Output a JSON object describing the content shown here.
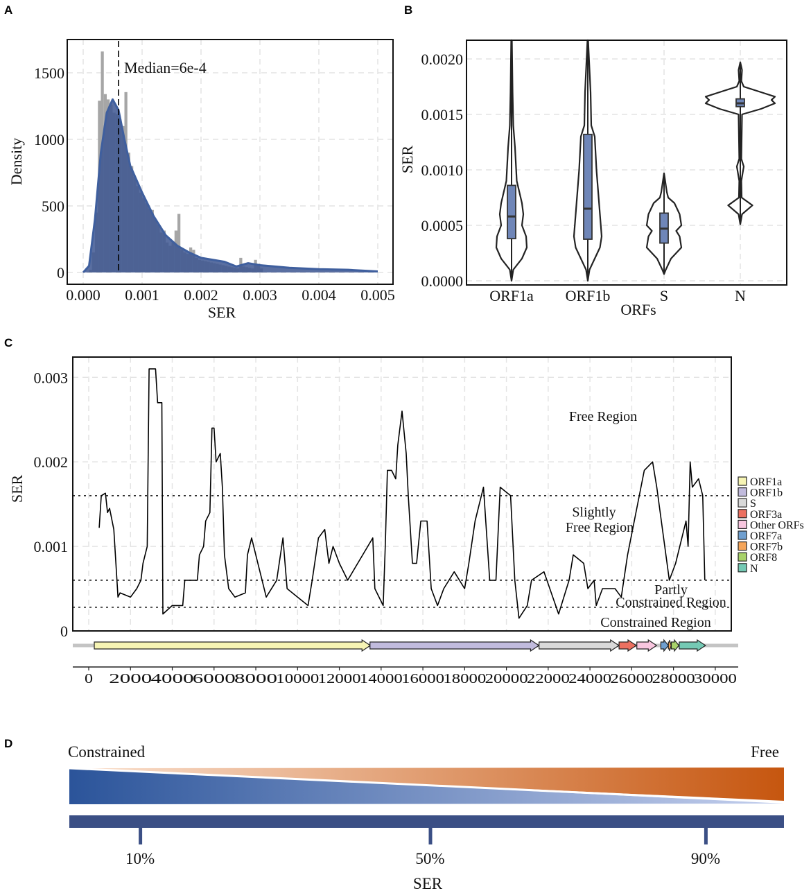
{
  "panels": {
    "a": "A",
    "b": "B",
    "c": "C",
    "d": "D"
  },
  "chart_data": [
    {
      "type": "histogram+density",
      "panel": "A",
      "xlabel": "SER",
      "ylabel": "Density",
      "xlim": [
        0,
        0.0052
      ],
      "ylim": [
        -80,
        1750
      ],
      "xticks": [
        "0.000",
        "0.001",
        "0.002",
        "0.003",
        "0.004",
        "0.005"
      ],
      "xtick_values": [
        0,
        0.001,
        0.002,
        0.003,
        0.004,
        0.005
      ],
      "yticks": [
        "0",
        "500",
        "1000",
        "1500"
      ],
      "ytick_values": [
        0,
        500,
        1000,
        1500
      ],
      "grid": true,
      "annotation": "Median=6e-4",
      "median": 0.0006,
      "bin_width": 5e-05,
      "histogram": [
        [
          0.0001,
          20
        ],
        [
          0.00015,
          150
        ],
        [
          0.0002,
          450
        ],
        [
          0.00025,
          1290
        ],
        [
          0.0003,
          1660
        ],
        [
          0.00035,
          1340
        ],
        [
          0.0004,
          1300
        ],
        [
          0.00045,
          1260
        ],
        [
          0.0005,
          1200
        ],
        [
          0.00055,
          1190
        ],
        [
          0.0006,
          1150
        ],
        [
          0.00065,
          1100
        ],
        [
          0.0007,
          1355
        ],
        [
          0.00075,
          900
        ],
        [
          0.0008,
          800
        ],
        [
          0.00085,
          720
        ],
        [
          0.0009,
          650
        ],
        [
          0.00095,
          600
        ],
        [
          0.001,
          560
        ],
        [
          0.00105,
          520
        ],
        [
          0.0011,
          480
        ],
        [
          0.00115,
          470
        ],
        [
          0.0012,
          400
        ],
        [
          0.00125,
          360
        ],
        [
          0.0013,
          300
        ],
        [
          0.00135,
          315
        ],
        [
          0.0014,
          225
        ],
        [
          0.00145,
          200
        ],
        [
          0.0015,
          225
        ],
        [
          0.00155,
          315
        ],
        [
          0.0016,
          440
        ],
        [
          0.00165,
          170
        ],
        [
          0.0017,
          150
        ],
        [
          0.00175,
          140
        ],
        [
          0.0018,
          188
        ],
        [
          0.00185,
          170
        ],
        [
          0.0019,
          110
        ],
        [
          0.00195,
          95
        ],
        [
          0.002,
          90
        ],
        [
          0.00205,
          85
        ],
        [
          0.0021,
          80
        ],
        [
          0.00215,
          75
        ],
        [
          0.0022,
          70
        ],
        [
          0.00225,
          65
        ],
        [
          0.0023,
          60
        ],
        [
          0.00235,
          55
        ],
        [
          0.0024,
          50
        ],
        [
          0.00245,
          45
        ],
        [
          0.0025,
          40
        ],
        [
          0.00255,
          35
        ],
        [
          0.0026,
          30
        ],
        [
          0.00265,
          110
        ],
        [
          0.0027,
          45
        ],
        [
          0.00275,
          40
        ],
        [
          0.0028,
          35
        ],
        [
          0.00285,
          30
        ],
        [
          0.0029,
          95
        ],
        [
          0.00295,
          65
        ],
        [
          0.003,
          30
        ]
      ],
      "density": [
        [
          0,
          0
        ],
        [
          0.0001,
          50
        ],
        [
          0.0002,
          400
        ],
        [
          0.0003,
          900
        ],
        [
          0.0004,
          1200
        ],
        [
          0.0005,
          1300
        ],
        [
          0.0006,
          1220
        ],
        [
          0.0007,
          1000
        ],
        [
          0.0008,
          800
        ],
        [
          0.001,
          600
        ],
        [
          0.0012,
          420
        ],
        [
          0.0014,
          280
        ],
        [
          0.0016,
          200
        ],
        [
          0.0018,
          150
        ],
        [
          0.002,
          110
        ],
        [
          0.0022,
          95
        ],
        [
          0.0024,
          80
        ],
        [
          0.0026,
          45
        ],
        [
          0.0028,
          70
        ],
        [
          0.003,
          55
        ],
        [
          0.0035,
          35
        ],
        [
          0.004,
          25
        ],
        [
          0.0045,
          20
        ],
        [
          0.005,
          8
        ]
      ],
      "colors": {
        "histogram": "#a6a6a6",
        "density_fill": "#3d5690",
        "density_line": "#3f5f9e",
        "median_line": "#000000"
      }
    },
    {
      "type": "violin",
      "panel": "B",
      "xlabel": "ORFs",
      "ylabel": "SER",
      "categories": [
        "ORF1a",
        "ORF1b",
        "S",
        "N"
      ],
      "ylim": [
        0,
        0.00217
      ],
      "yticks": [
        "0.0000",
        "0.0005",
        "0.0010",
        "0.0015",
        "0.0020"
      ],
      "ytick_values": [
        0,
        0.0005,
        0.001,
        0.0015,
        0.002
      ],
      "grid": true,
      "boxes": [
        {
          "q1": 0.00038,
          "median": 0.00058,
          "q3": 0.00086
        },
        {
          "q1": 0.000375,
          "median": 0.00065,
          "q3": 0.00132
        },
        {
          "q1": 0.00034,
          "median": 0.00047,
          "q3": 0.00061
        },
        {
          "q1": 0.00157,
          "median": 0.0016,
          "q3": 0.00164
        }
      ],
      "violins": [
        [
          [
            0,
            0
          ],
          [
            0.0001,
            0.05
          ],
          [
            0.0002,
            0.3
          ],
          [
            0.0003,
            0.44
          ],
          [
            0.0004,
            0.42
          ],
          [
            0.0005,
            0.3
          ],
          [
            0.0006,
            0.34
          ],
          [
            0.0007,
            0.3
          ],
          [
            0.0009,
            0.15
          ],
          [
            0.0012,
            0.1
          ],
          [
            0.0014,
            0.05
          ],
          [
            0.0017,
            0.03
          ],
          [
            0.00217,
            0.01
          ]
        ],
        [
          [
            0,
            0
          ],
          [
            0.0001,
            0.05
          ],
          [
            0.0002,
            0.2
          ],
          [
            0.0003,
            0.35
          ],
          [
            0.0004,
            0.4
          ],
          [
            0.0006,
            0.35
          ],
          [
            0.0008,
            0.3
          ],
          [
            0.001,
            0.25
          ],
          [
            0.0013,
            0.2
          ],
          [
            0.0014,
            0.1
          ],
          [
            0.0017,
            0.08
          ],
          [
            0.00217,
            0.01
          ]
        ],
        [
          [
            6e-05,
            0
          ],
          [
            0.0001,
            0.05
          ],
          [
            0.0002,
            0.2
          ],
          [
            0.0003,
            0.5
          ],
          [
            0.0004,
            0.45
          ],
          [
            0.00045,
            0.35
          ],
          [
            0.0005,
            0.5
          ],
          [
            0.0006,
            0.45
          ],
          [
            0.0007,
            0.3
          ],
          [
            0.00075,
            0.12
          ],
          [
            0.0008,
            0.08
          ],
          [
            0.00097,
            0
          ]
        ],
        [
          [
            0.00051,
            0
          ],
          [
            0.0006,
            0.05
          ],
          [
            0.00068,
            0.35
          ],
          [
            0.00075,
            0.04
          ],
          [
            0.0009,
            0.03
          ],
          [
            0.00103,
            0.1
          ],
          [
            0.0011,
            0.03
          ],
          [
            0.0015,
            0.05
          ],
          [
            0.00155,
            0.6
          ],
          [
            0.0016,
            1.0
          ],
          [
            0.00163,
            0.9
          ],
          [
            0.00166,
            1.0
          ],
          [
            0.0017,
            0.6
          ],
          [
            0.00175,
            0.1
          ],
          [
            0.0018,
            0.03
          ],
          [
            0.0019,
            0.05
          ],
          [
            0.00197,
            0
          ]
        ]
      ],
      "colors": {
        "box": "#6f86b8",
        "outline": "#222222"
      }
    },
    {
      "type": "line",
      "panel": "C",
      "ylabel": "SER",
      "xlabel": "",
      "xlim": [
        -750,
        31000
      ],
      "ylim": [
        0,
        0.00324
      ],
      "xticks": [
        "0",
        "2000",
        "4000",
        "6000",
        "8000",
        "10000",
        "12000",
        "14000",
        "16000",
        "18000",
        "20000",
        "22000",
        "24000",
        "26000",
        "28000",
        "30000"
      ],
      "xtick_values": [
        0,
        2000,
        4000,
        6000,
        8000,
        10000,
        12000,
        14000,
        16000,
        18000,
        20000,
        22000,
        24000,
        26000,
        28000,
        30000
      ],
      "yticks": [
        "0",
        "0.001",
        "0.002",
        "0.003"
      ],
      "ytick_values": [
        0,
        0.001,
        0.002,
        0.003
      ],
      "grid": true,
      "thresholds": [
        0.0016,
        0.0006,
        0.00028
      ],
      "region_labels": [
        "Free Region",
        "Slightly",
        "Free Region",
        "Partly",
        "Constrained Region",
        "Constrained  Region"
      ],
      "points": [
        [
          500,
          0.00122
        ],
        [
          600,
          0.0016
        ],
        [
          800,
          0.00163
        ],
        [
          900,
          0.0014
        ],
        [
          1000,
          0.00145
        ],
        [
          1200,
          0.0012
        ],
        [
          1400,
          0.0004
        ],
        [
          1500,
          0.00045
        ],
        [
          2000,
          0.0004
        ],
        [
          2300,
          0.0005
        ],
        [
          2500,
          0.0006
        ],
        [
          2600,
          0.0008
        ],
        [
          2800,
          0.001
        ],
        [
          2890,
          0.0031
        ],
        [
          3200,
          0.0031
        ],
        [
          3300,
          0.0027
        ],
        [
          3500,
          0.0027
        ],
        [
          3550,
          0.0002
        ],
        [
          4000,
          0.0003
        ],
        [
          4500,
          0.0003
        ],
        [
          4600,
          0.0006
        ],
        [
          4800,
          0.0006
        ],
        [
          5200,
          0.0006
        ],
        [
          5300,
          0.0009
        ],
        [
          5500,
          0.001
        ],
        [
          5600,
          0.0013
        ],
        [
          5800,
          0.0014
        ],
        [
          5900,
          0.0024
        ],
        [
          6000,
          0.0024
        ],
        [
          6100,
          0.002
        ],
        [
          6300,
          0.0021
        ],
        [
          6400,
          0.0017
        ],
        [
          6500,
          0.0009
        ],
        [
          6700,
          0.0005
        ],
        [
          7000,
          0.0004
        ],
        [
          7500,
          0.00045
        ],
        [
          7600,
          0.0009
        ],
        [
          7800,
          0.0011
        ],
        [
          8000,
          0.0009
        ],
        [
          8500,
          0.0004
        ],
        [
          9000,
          0.0006
        ],
        [
          9300,
          0.0011
        ],
        [
          9500,
          0.0005
        ],
        [
          10000,
          0.0004
        ],
        [
          10500,
          0.0003
        ],
        [
          10700,
          0.0006
        ],
        [
          11000,
          0.0011
        ],
        [
          11300,
          0.0012
        ],
        [
          11500,
          0.0008
        ],
        [
          11700,
          0.001
        ],
        [
          12000,
          0.0008
        ],
        [
          12400,
          0.0006
        ],
        [
          13600,
          0.0011
        ],
        [
          13700,
          0.0005
        ],
        [
          14100,
          0.0003
        ],
        [
          14200,
          0.001
        ],
        [
          14300,
          0.0019
        ],
        [
          14500,
          0.0019
        ],
        [
          14700,
          0.0018
        ],
        [
          14800,
          0.0022
        ],
        [
          15000,
          0.0026
        ],
        [
          15200,
          0.0021
        ],
        [
          15300,
          0.0016
        ],
        [
          15500,
          0.0008
        ],
        [
          15700,
          0.0008
        ],
        [
          15900,
          0.0013
        ],
        [
          16200,
          0.0013
        ],
        [
          16400,
          0.0005
        ],
        [
          16700,
          0.0003
        ],
        [
          17000,
          0.0005
        ],
        [
          17500,
          0.0007
        ],
        [
          18000,
          0.0005
        ],
        [
          18200,
          0.0008
        ],
        [
          18500,
          0.0013
        ],
        [
          18900,
          0.0017
        ],
        [
          19200,
          0.0006
        ],
        [
          19500,
          0.0006
        ],
        [
          19700,
          0.0017
        ],
        [
          20200,
          0.0016
        ],
        [
          20400,
          0.0006
        ],
        [
          20600,
          0.00015
        ],
        [
          21000,
          0.0003
        ],
        [
          21200,
          0.0006
        ],
        [
          21800,
          0.0007
        ],
        [
          22500,
          0.0002
        ],
        [
          23000,
          0.0006
        ],
        [
          23200,
          0.0009
        ],
        [
          23700,
          0.0008
        ],
        [
          23900,
          0.0005
        ],
        [
          24200,
          0.0006
        ],
        [
          24300,
          0.0003
        ],
        [
          24600,
          0.0005
        ],
        [
          25200,
          0.0005
        ],
        [
          25500,
          0.0004
        ],
        [
          25800,
          0.0009
        ],
        [
          26600,
          0.0019
        ],
        [
          27000,
          0.002
        ],
        [
          27200,
          0.0017
        ],
        [
          27800,
          0.0006
        ],
        [
          28100,
          0.0008
        ],
        [
          28300,
          0.001
        ],
        [
          28600,
          0.0013
        ],
        [
          28700,
          0.001
        ],
        [
          28800,
          0.002
        ],
        [
          28900,
          0.0017
        ],
        [
          29200,
          0.0018
        ],
        [
          29400,
          0.0016
        ],
        [
          29500,
          0.0006
        ]
      ],
      "genome_length": 30800,
      "genes": [
        {
          "name": "ORF1a",
          "start": 266,
          "end": 13483,
          "color": "#f6f4b4"
        },
        {
          "name": "ORF1b",
          "start": 13468,
          "end": 21555,
          "color": "#c1bbdd"
        },
        {
          "name": "S",
          "start": 21563,
          "end": 25384,
          "color": "#d9d9d9"
        },
        {
          "name": "ORF3a",
          "start": 25393,
          "end": 26220,
          "color": "#ec7060"
        },
        {
          "name": "Other ORFs",
          "start": 26245,
          "end": 27191,
          "color": "#f8c6df"
        },
        {
          "name": "ORF7a",
          "start": 27394,
          "end": 27759,
          "color": "#6f9fcf"
        },
        {
          "name": "ORF7b",
          "start": 27756,
          "end": 27887,
          "color": "#f5a55a"
        },
        {
          "name": "ORF8",
          "start": 27894,
          "end": 28259,
          "color": "#a8d26a"
        },
        {
          "name": "N",
          "start": 28274,
          "end": 29533,
          "color": "#74c9b4"
        }
      ],
      "legend": [
        "ORF1a",
        "ORF1b",
        "S",
        "ORF3a",
        "Other ORFs",
        "ORF7a",
        "ORF7b",
        "ORF8",
        "N"
      ],
      "legend_placement": "right"
    },
    {
      "type": "gradient-scale",
      "panel": "D",
      "left_label": "Constrained",
      "right_label": "Free",
      "ticks": [
        "10%",
        "50%",
        "90%"
      ],
      "tick_values": [
        10,
        50,
        90
      ],
      "xlabel": "SER",
      "colors": {
        "constrained_dark": "#2b549a",
        "constrained_light": "#c5d0ee",
        "free_light": "#fbe3d2",
        "free_dark": "#c6560f",
        "bar": "#3b4f85"
      }
    }
  ]
}
